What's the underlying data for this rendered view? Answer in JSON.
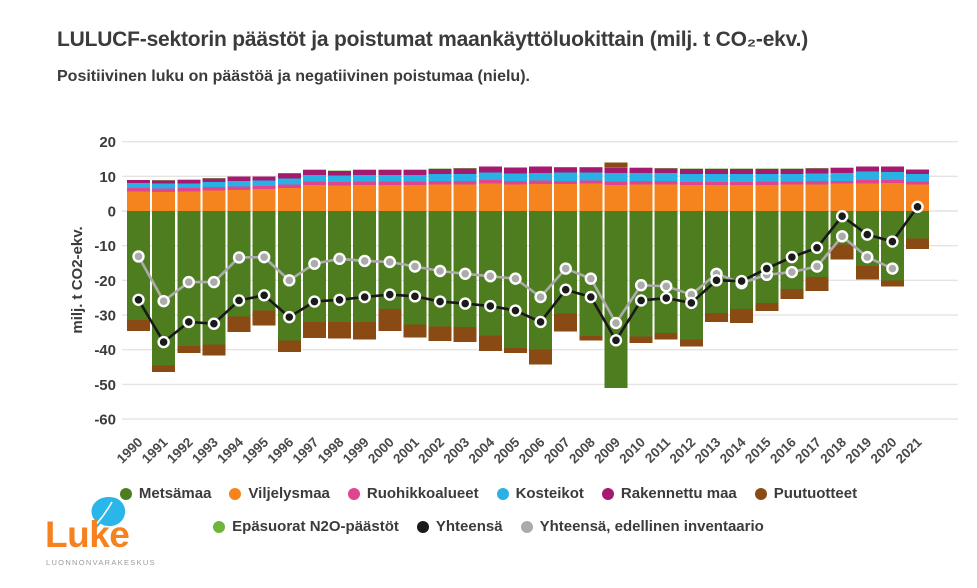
{
  "header": {
    "title": "LULUCF-sektorin päästöt ja poistumat maankäyttöluokittain (milj. t CO₂-ekv.)",
    "subtitle": "Positiivinen luku on päästöä ja negatiivinen poistumaa (nielu)."
  },
  "logo": {
    "wordmark": "Luke",
    "tagline": "LUONNONVARAKESKUS"
  },
  "chart_data": {
    "type": "bar",
    "subtype": "stacked-bars-with-total-lines",
    "title": "LULUCF-sektorin päästöt ja poistumat maankäyttöluokittain (milj. t CO₂-ekv.)",
    "xlabel": "",
    "ylabel": "milj. t CO2-ekv.",
    "ylim": [
      -60,
      20
    ],
    "yticks": [
      20,
      10,
      0,
      -10,
      -20,
      -30,
      -40,
      -50,
      -60
    ],
    "grid": true,
    "legend_position": "bottom",
    "categories": [
      1990,
      1991,
      1992,
      1993,
      1994,
      1995,
      1996,
      1997,
      1998,
      1999,
      2000,
      2001,
      2002,
      2003,
      2004,
      2005,
      2006,
      2007,
      2008,
      2009,
      2010,
      2011,
      2012,
      2013,
      2014,
      2015,
      2016,
      2017,
      2018,
      2019,
      2020,
      2021
    ],
    "series": [
      {
        "name": "Metsämaa",
        "color": "#4e7d20",
        "values": [
          -31.5,
          -44.5,
          -38.9,
          -38.5,
          -30.4,
          -28.7,
          -37.3,
          -32.0,
          -32.0,
          -32.0,
          -28.2,
          -32.7,
          -33.3,
          -33.5,
          -35.9,
          -39.5,
          -40.0,
          -29.5,
          -36.0,
          -51.0,
          -36.2,
          -35.2,
          -37.1,
          -29.4,
          -28.2,
          -26.5,
          -22.5,
          -19.0,
          -9.7,
          -15.8,
          -20.0,
          -8.0
        ]
      },
      {
        "name": "Viljelysmaa",
        "color": "#f5841e",
        "values": [
          5.6,
          5.5,
          5.6,
          5.9,
          6.1,
          6.3,
          6.7,
          7.5,
          7.3,
          7.5,
          7.5,
          7.5,
          7.6,
          7.7,
          7.9,
          7.7,
          7.8,
          7.8,
          7.9,
          7.5,
          7.6,
          7.6,
          7.5,
          7.5,
          7.5,
          7.5,
          7.6,
          7.7,
          7.9,
          8.0,
          8.1,
          7.7
        ]
      },
      {
        "name": "Ruohikkoalueet",
        "color": "#e0468f",
        "values": [
          1.0,
          1.0,
          1.0,
          1.0,
          1.0,
          0.9,
          1.0,
          1.0,
          1.0,
          1.0,
          1.0,
          1.0,
          1.0,
          1.0,
          1.0,
          1.0,
          1.0,
          0.9,
          0.9,
          1.0,
          1.0,
          1.0,
          0.9,
          0.9,
          0.9,
          1.0,
          0.9,
          0.9,
          0.8,
          1.0,
          0.8,
          0.8
        ]
      },
      {
        "name": "Kosteikot",
        "color": "#29b1e6",
        "values": [
          1.5,
          1.4,
          1.4,
          1.5,
          1.6,
          1.6,
          1.7,
          1.9,
          1.9,
          1.9,
          1.9,
          1.9,
          2.0,
          2.0,
          2.2,
          2.1,
          2.2,
          2.4,
          2.3,
          2.4,
          2.3,
          2.3,
          2.3,
          2.3,
          2.3,
          2.2,
          2.2,
          2.2,
          2.2,
          2.4,
          2.4,
          2.2
        ]
      },
      {
        "name": "Rakennettu maa",
        "color": "#a41a70",
        "values": [
          0.8,
          0.9,
          1.0,
          1.0,
          1.2,
          1.1,
          1.4,
          1.4,
          1.4,
          1.4,
          1.4,
          1.4,
          1.5,
          1.6,
          1.7,
          1.7,
          1.8,
          1.5,
          1.5,
          1.5,
          1.5,
          1.4,
          1.4,
          1.4,
          1.4,
          1.4,
          1.4,
          1.5,
          1.5,
          1.4,
          1.5,
          1.2
        ]
      },
      {
        "name": "Puutuotteet",
        "color": "#8a4a13",
        "values": [
          -3.1,
          -1.9,
          -2.1,
          -3.2,
          -4.5,
          -4.3,
          -3.4,
          -4.6,
          -4.8,
          -5.1,
          -6.4,
          -3.8,
          -4.2,
          -4.3,
          -4.5,
          -1.5,
          -4.2,
          -5.3,
          -1.3,
          1.5,
          -1.9,
          -1.9,
          -1.9,
          -2.6,
          -4.1,
          -2.3,
          -2.9,
          -4.0,
          -4.3,
          -3.9,
          -1.7,
          -2.9
        ]
      },
      {
        "name": "Epäsuorat N2O-päästöt",
        "color": "#6fb43c",
        "values": [
          0.1,
          0.1,
          0.1,
          0.1,
          0.1,
          0.1,
          0.1,
          0.1,
          0.1,
          0.1,
          0.1,
          0.1,
          0.1,
          0.1,
          0.1,
          0.1,
          0.1,
          0.1,
          0.1,
          0.1,
          0.1,
          0.1,
          0.1,
          0.1,
          0.1,
          0.1,
          0.1,
          0.1,
          0.1,
          0.1,
          0.1,
          0.1
        ]
      }
    ],
    "lines": [
      {
        "name": "Yhteensä",
        "color": "#1a1a1a",
        "values": [
          -25.6,
          -37.8,
          -32.0,
          -32.5,
          -25.8,
          -24.3,
          -30.6,
          -26.1,
          -25.6,
          -24.8,
          -24.1,
          -24.6,
          -26.1,
          -26.7,
          -27.4,
          -28.7,
          -32.0,
          -22.7,
          -24.8,
          -37.3,
          -25.8,
          -25.1,
          -26.5,
          -20.0,
          -20.2,
          -16.6,
          -13.3,
          -10.6,
          -1.5,
          -6.8,
          -8.8,
          1.2
        ]
      },
      {
        "name": "Yhteensä, edellinen inventaario",
        "color": "#ababab",
        "values": [
          -13.1,
          -26.0,
          -20.5,
          -20.5,
          -13.4,
          -13.3,
          -20.0,
          -15.2,
          -13.8,
          -14.4,
          -14.7,
          -16.0,
          -17.3,
          -18.1,
          -18.8,
          -19.5,
          -24.8,
          -16.6,
          -19.5,
          -32.3,
          -21.4,
          -21.7,
          -24.1,
          -18.1,
          -20.8,
          -18.4,
          -17.6,
          -16.0,
          -7.3,
          -13.3,
          -16.6,
          null
        ]
      }
    ],
    "stack_order_positive": [
      "Viljelysmaa",
      "Ruohikkoalueet",
      "Kosteikot",
      "Rakennettu maa",
      "Epäsuorat N2O-päästöt",
      "Puutuotteet"
    ],
    "stack_order_negative": [
      "Metsämaa",
      "Puutuotteet"
    ],
    "legend_rows": [
      [
        "Metsämaa",
        "Viljelysmaa",
        "Ruohikkoalueet",
        "Kosteikot",
        "Rakennettu maa",
        "Puutuotteet"
      ],
      [
        "Epäsuorat N2O-päästöt",
        "Yhteensä",
        "Yhteensä, edellinen inventaario"
      ]
    ]
  },
  "style": {
    "grid_color": "#e4e4e4",
    "axis_text_color": "#3b3b3b",
    "year_label_color": "#4a4a4a",
    "luke_orange": "#f5821f",
    "luke_cyan": "#2ab6e8"
  }
}
